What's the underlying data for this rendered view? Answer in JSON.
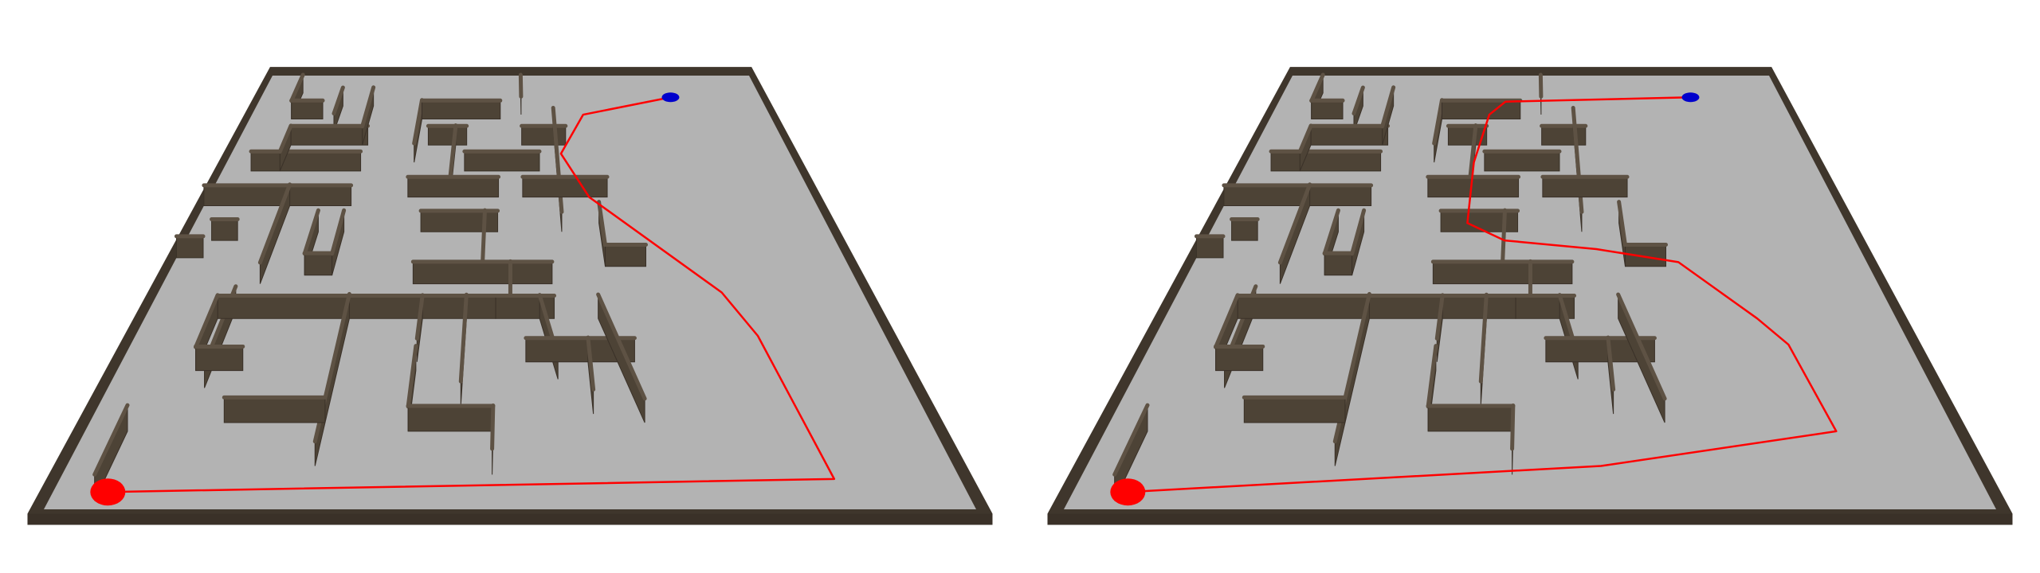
{
  "scene": {
    "floor_color": "#b3b3b3",
    "wall_color": "#4d4336",
    "wall_top_color": "#5e5244",
    "wall_side_color": "#3a3128",
    "border_color": "#3f362c",
    "path_color": "#ff0000",
    "start_marker_color": "#ff0000",
    "goal_marker_color": "#0000cc"
  },
  "panels": [
    {
      "id": "left",
      "caption": "",
      "start_marker": "red-start-disc",
      "goal_marker": "blue-goal-disc"
    },
    {
      "id": "right",
      "caption": "",
      "start_marker": "red-start-disc",
      "goal_marker": "blue-goal-disc"
    }
  ]
}
